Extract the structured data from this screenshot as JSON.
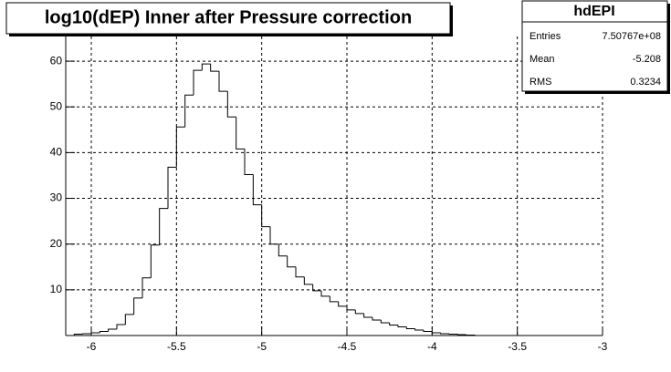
{
  "chart_data": {
    "type": "histogram",
    "title": "log10(dEP) Inner after Pressure correction",
    "bins": [
      -6.1,
      -6.05,
      -6.0,
      -5.95,
      -5.9,
      -5.85,
      -5.8,
      -5.75,
      -5.7,
      -5.65,
      -5.6,
      -5.55,
      -5.5,
      -5.45,
      -5.4,
      -5.35,
      -5.3,
      -5.25,
      -5.2,
      -5.15,
      -5.1,
      -5.05,
      -5.0,
      -4.95,
      -4.9,
      -4.85,
      -4.8,
      -4.75,
      -4.7,
      -4.65,
      -4.6,
      -4.55,
      -4.5,
      -4.45,
      -4.4,
      -4.35,
      -4.3,
      -4.25,
      -4.2,
      -4.15,
      -4.1,
      -4.05,
      -4.0,
      -3.95,
      -3.9,
      -3.85,
      -3.8,
      -3.75
    ],
    "values": [
      0.3,
      0.4,
      0.6,
      0.9,
      1.4,
      2.4,
      4.6,
      8.2,
      12.6,
      19.8,
      27.8,
      36.8,
      45.6,
      52.6,
      58.0,
      59.4,
      57.8,
      53.4,
      47.8,
      40.8,
      35.2,
      28.6,
      23.8,
      20.0,
      17.4,
      15.0,
      12.8,
      11.2,
      9.8,
      8.6,
      7.4,
      6.4,
      5.6,
      4.8,
      4.0,
      3.4,
      2.8,
      2.3,
      1.9,
      1.5,
      1.2,
      0.9,
      0.6,
      0.4,
      0.3,
      0.2,
      0.1
    ],
    "color": "#000000",
    "xlim": [
      -6.15,
      -3
    ],
    "xticks": [
      -6,
      -5.5,
      -5,
      -4.5,
      -4,
      -3.5,
      -3
    ],
    "ylim": [
      0,
      65.4
    ],
    "yticks": [
      10,
      20,
      30,
      40,
      50,
      60
    ],
    "grid": true,
    "stats": {
      "title": "hdEPI",
      "rows": [
        [
          "Entries",
          "7.50767e+08"
        ],
        [
          "Mean",
          "-5.208"
        ],
        [
          "RMS",
          "0.3234"
        ]
      ]
    }
  }
}
